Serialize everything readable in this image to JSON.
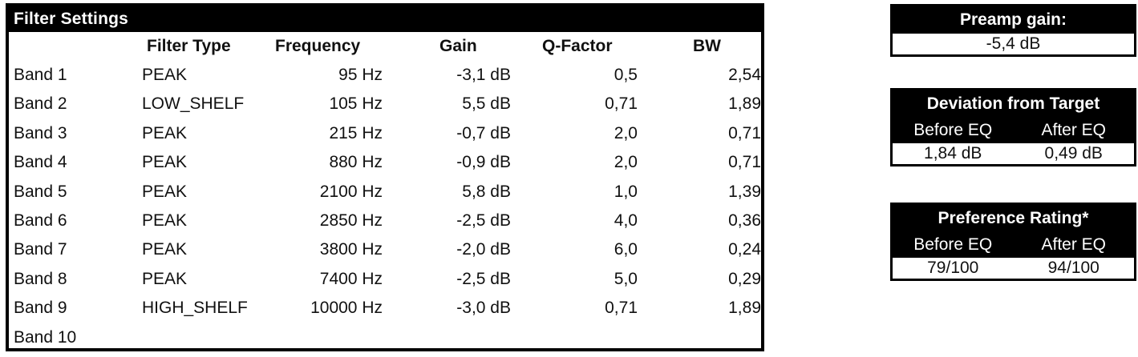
{
  "filter_settings": {
    "title": "Filter Settings",
    "columns": {
      "filter_type": "Filter Type",
      "frequency": "Frequency",
      "gain": "Gain",
      "q_factor": "Q-Factor",
      "bw": "BW"
    },
    "bands": [
      {
        "band": "Band 1",
        "type": "PEAK",
        "frequency": "95 Hz",
        "gain": "-3,1 dB",
        "q": "0,5",
        "bw": "2,54"
      },
      {
        "band": "Band 2",
        "type": "LOW_SHELF",
        "frequency": "105 Hz",
        "gain": "5,5 dB",
        "q": "0,71",
        "bw": "1,89"
      },
      {
        "band": "Band 3",
        "type": "PEAK",
        "frequency": "215 Hz",
        "gain": "-0,7 dB",
        "q": "2,0",
        "bw": "0,71"
      },
      {
        "band": "Band 4",
        "type": "PEAK",
        "frequency": "880 Hz",
        "gain": "-0,9 dB",
        "q": "2,0",
        "bw": "0,71"
      },
      {
        "band": "Band 5",
        "type": "PEAK",
        "frequency": "2100 Hz",
        "gain": "5,8 dB",
        "q": "1,0",
        "bw": "1,39"
      },
      {
        "band": "Band 6",
        "type": "PEAK",
        "frequency": "2850 Hz",
        "gain": "-2,5 dB",
        "q": "4,0",
        "bw": "0,36"
      },
      {
        "band": "Band 7",
        "type": "PEAK",
        "frequency": "3800 Hz",
        "gain": "-2,0 dB",
        "q": "6,0",
        "bw": "0,24"
      },
      {
        "band": "Band 8",
        "type": "PEAK",
        "frequency": "7400 Hz",
        "gain": "-2,5 dB",
        "q": "5,0",
        "bw": "0,29"
      },
      {
        "band": "Band 9",
        "type": "HIGH_SHELF",
        "frequency": "10000 Hz",
        "gain": "-3,0 dB",
        "q": "0,71",
        "bw": "1,89"
      },
      {
        "band": "Band 10",
        "type": "",
        "frequency": "",
        "gain": "",
        "q": "",
        "bw": ""
      }
    ]
  },
  "preamp": {
    "title": "Preamp gain:",
    "value": "-5,4 dB"
  },
  "deviation": {
    "title": "Deviation from Target",
    "before_label": "Before EQ",
    "after_label": "After EQ",
    "before_value": "1,84 dB",
    "after_value": "0,49 dB"
  },
  "preference": {
    "title": "Preference Rating*",
    "before_label": "Before EQ",
    "after_label": "After EQ",
    "before_value": "79/100",
    "after_value": "94/100"
  }
}
